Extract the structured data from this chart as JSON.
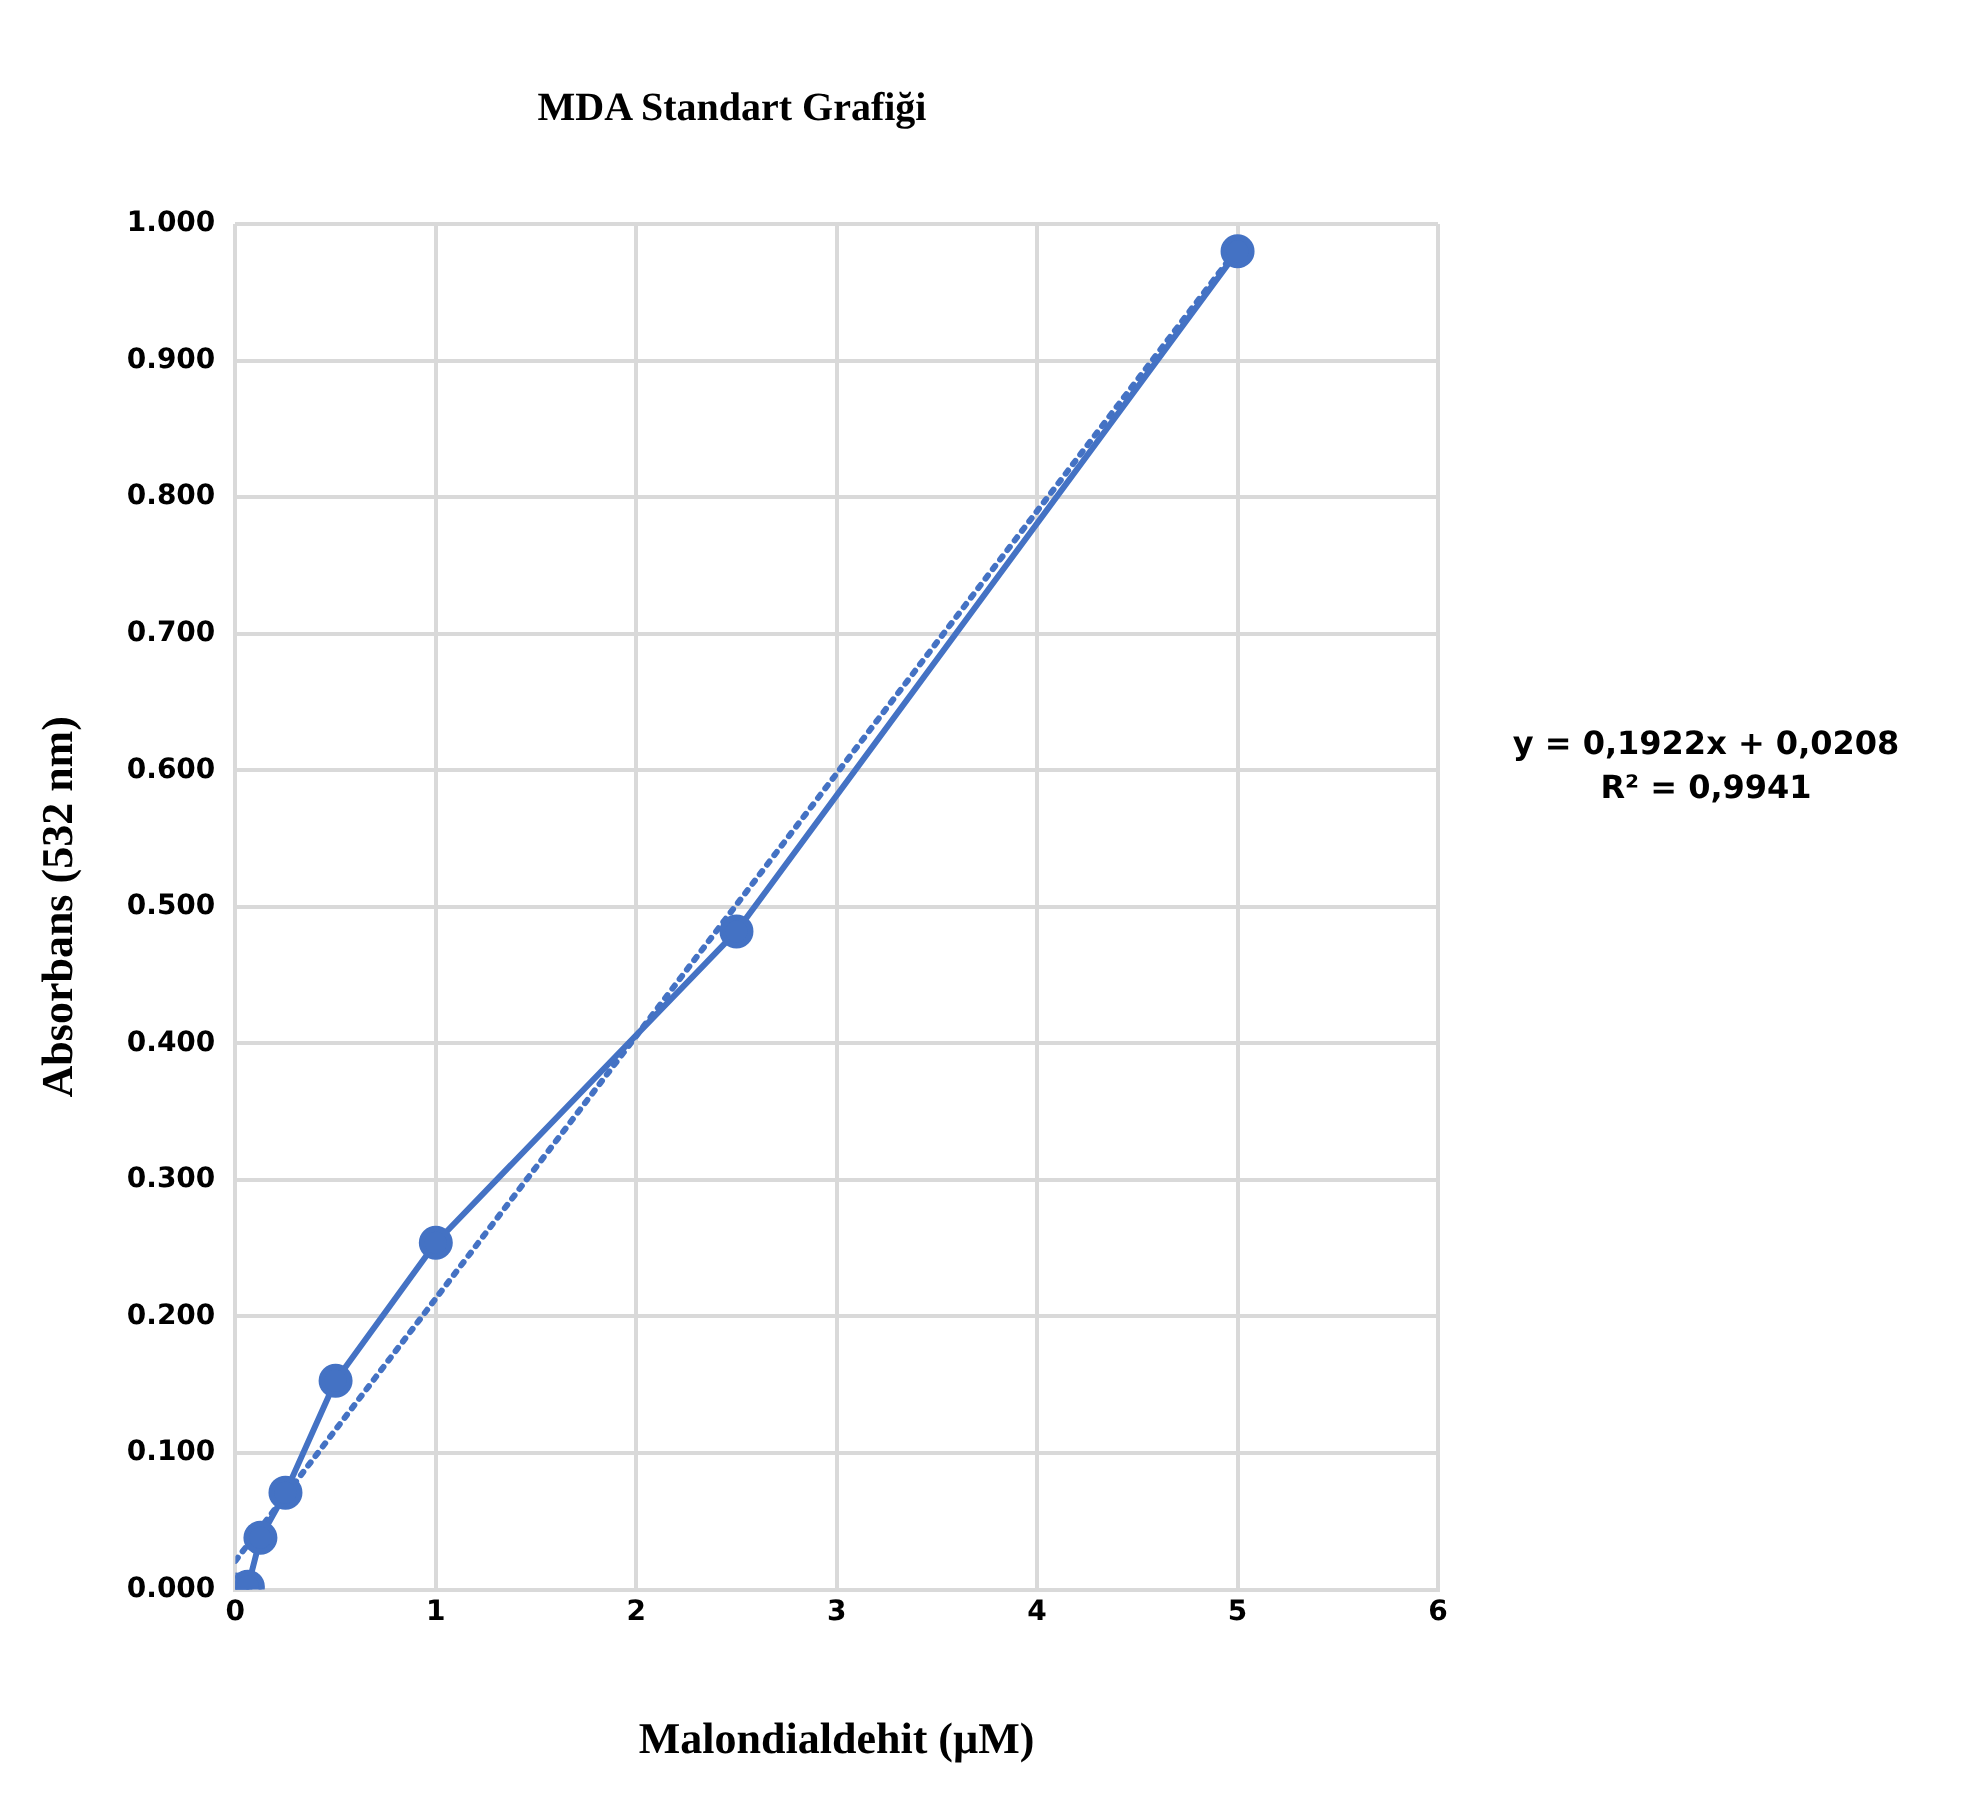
{
  "chart_data": {
    "type": "line",
    "title": "MDA Standart Grafiği",
    "xlabel": "Malondialdehit (µM)",
    "ylabel": "Absorbans (532 nm)",
    "xlim": [
      0,
      6
    ],
    "xticks": [
      0,
      1,
      2,
      3,
      4,
      5,
      6
    ],
    "ylim": [
      0,
      1
    ],
    "yticks": [
      {
        "value": 0,
        "label": "0.000"
      },
      {
        "value": 0.1,
        "label": "0.100"
      },
      {
        "value": 0.2,
        "label": "0.200"
      },
      {
        "value": 0.3,
        "label": "0.300"
      },
      {
        "value": 0.4,
        "label": "0.400"
      },
      {
        "value": 0.5,
        "label": "0.500"
      },
      {
        "value": 0.6,
        "label": "0.600"
      },
      {
        "value": 0.7,
        "label": "0.700"
      },
      {
        "value": 0.8,
        "label": "0.800"
      },
      {
        "value": 0.9,
        "label": "0.900"
      },
      {
        "value": 1,
        "label": "1.000"
      }
    ],
    "grid": true,
    "legend": false,
    "series": [
      {
        "color": "#4472c4",
        "marker": "circle",
        "line_style": "solid",
        "x": [
          0,
          0.0625,
          0.125,
          0.25,
          0.5,
          1,
          2.5,
          5
        ],
        "values": [
          0,
          0.002,
          0.038,
          0.071,
          0.153,
          0.254,
          0.482,
          0.98
        ]
      },
      {
        "color": "#4472c4",
        "marker": "none",
        "line_style": "dotted",
        "x": [
          0,
          5
        ],
        "values": [
          0.021,
          0.982
        ]
      }
    ],
    "annotations": [
      "y = 0,1922x + 0,0208",
      "R² = 0,9941"
    ]
  }
}
